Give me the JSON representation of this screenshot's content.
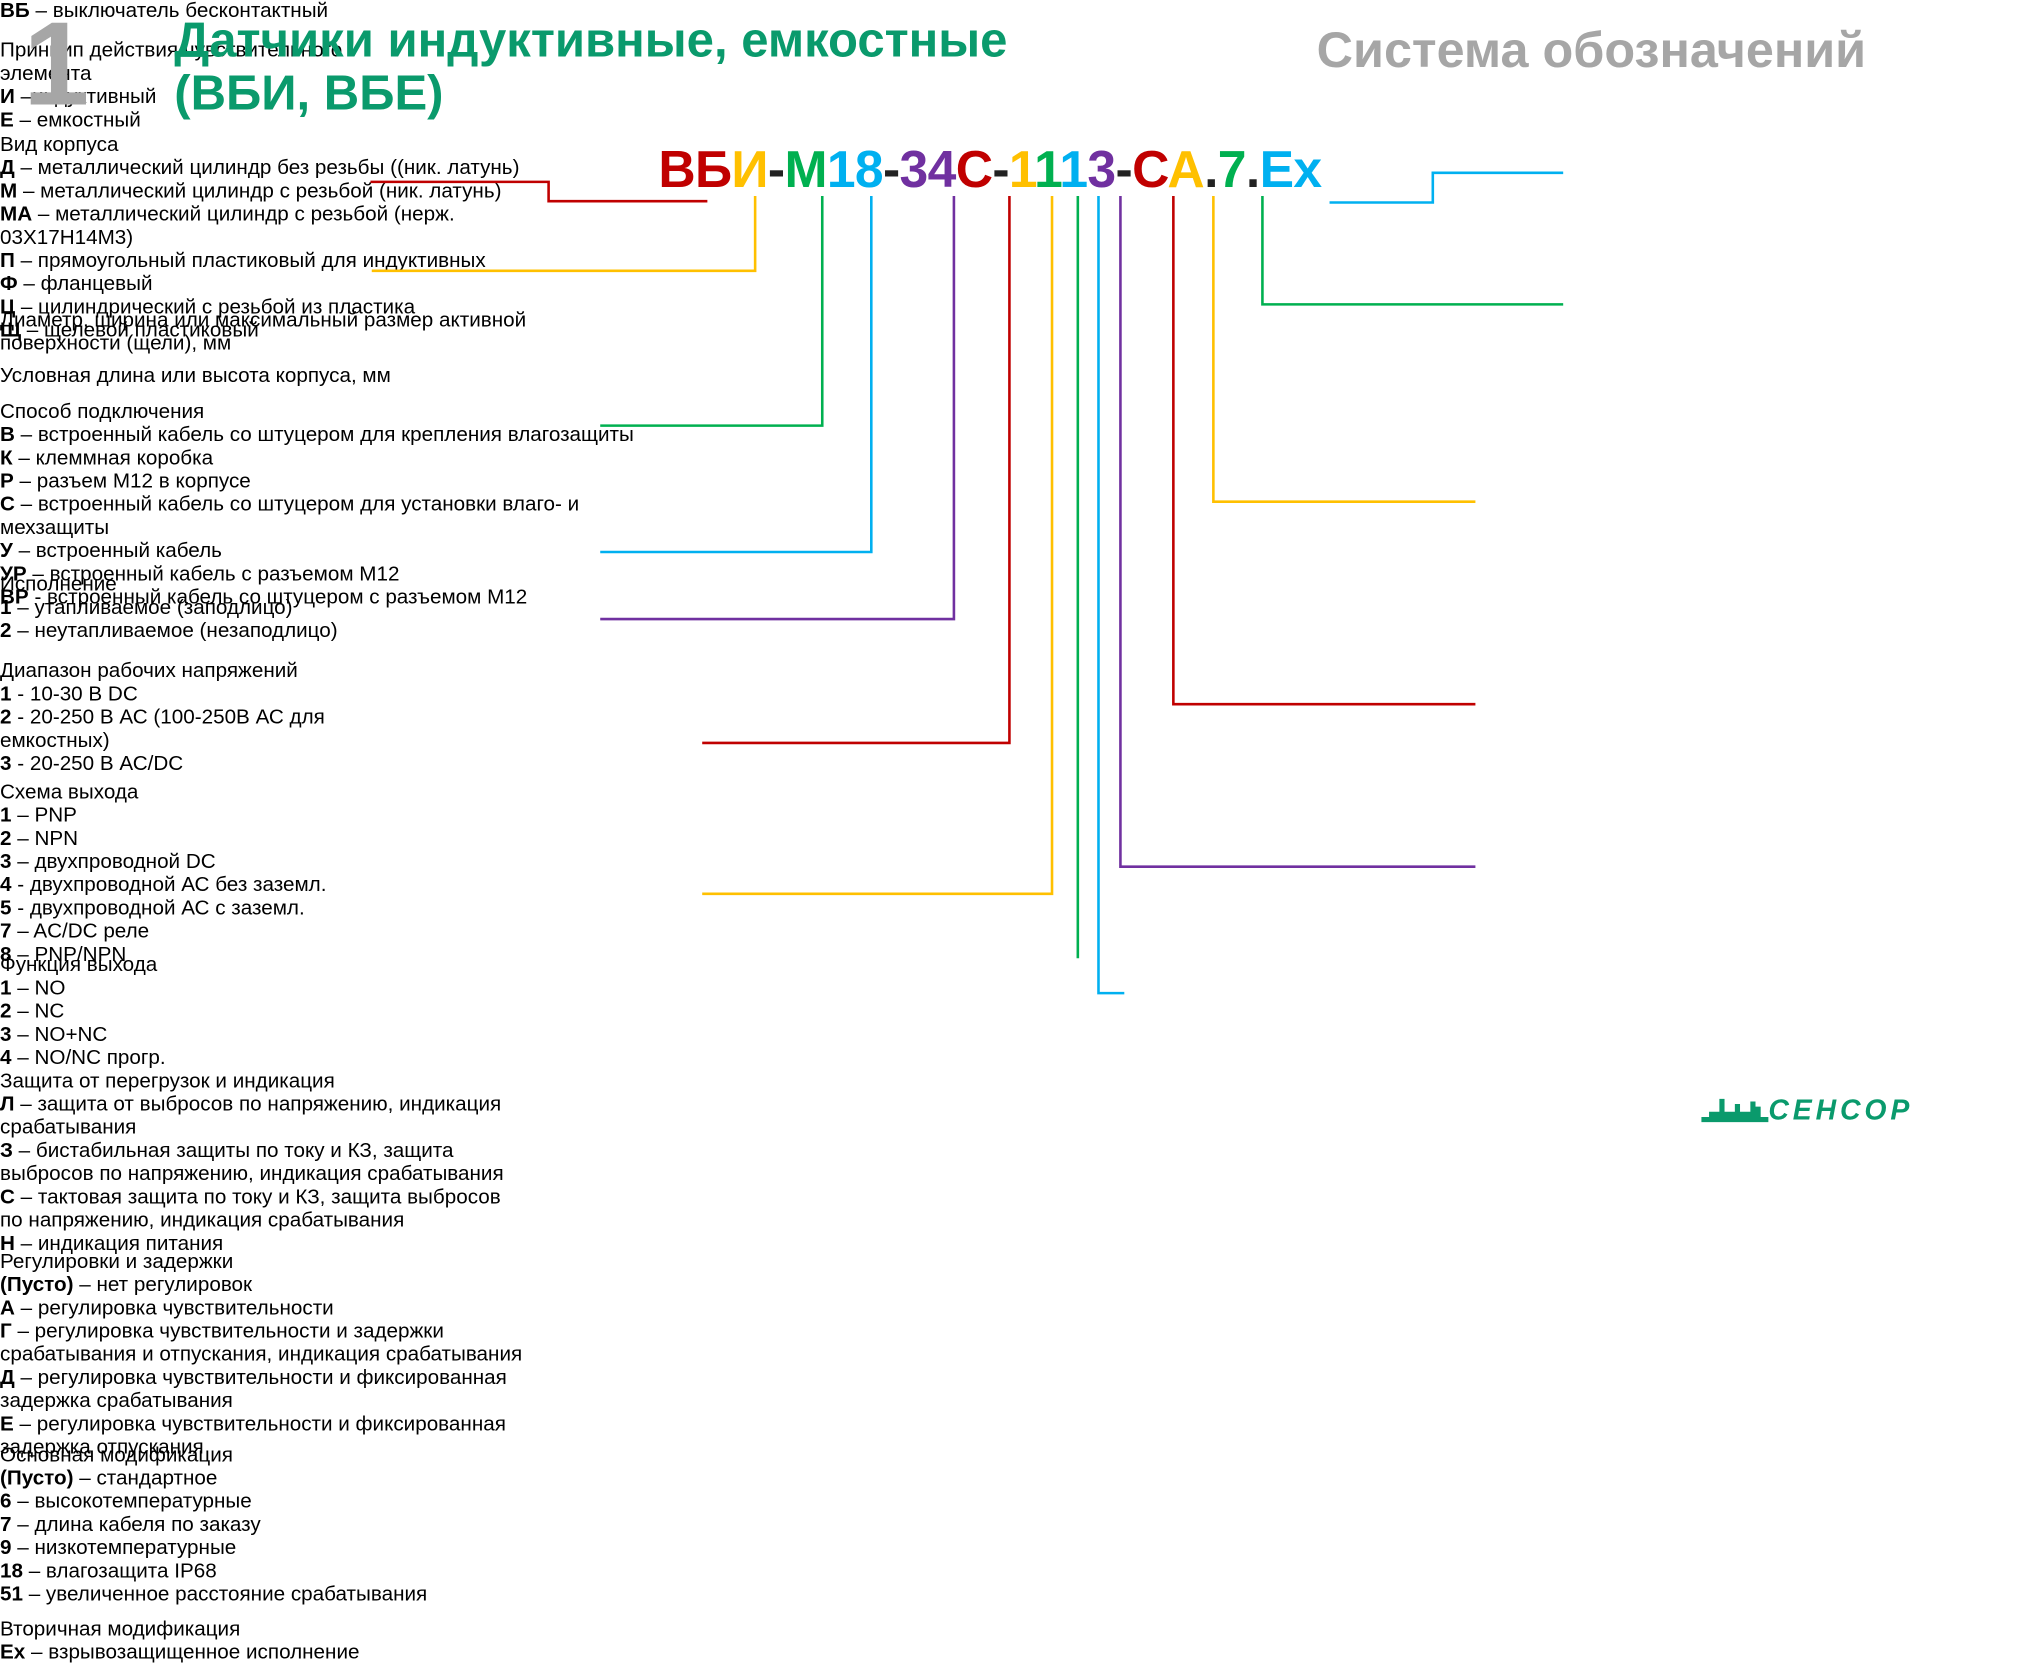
{
  "header": {
    "number": "1",
    "title": [
      "Датчики индуктивные, емкостные",
      "(ВБИ, ВБЕ)"
    ],
    "subtitle": "Система обозначений"
  },
  "code": [
    {
      "text": "ВБ",
      "color": "#c00000"
    },
    {
      "text": "И",
      "color": "#ffc000"
    },
    {
      "text": "-",
      "color": "#222222"
    },
    {
      "text": "М",
      "color": "#00b050"
    },
    {
      "text": "18",
      "color": "#00b0f0"
    },
    {
      "text": "-",
      "color": "#222222"
    },
    {
      "text": "34",
      "color": "#7030a0"
    },
    {
      "text": "С",
      "color": "#c00000"
    },
    {
      "text": "-",
      "color": "#222222"
    },
    {
      "text": "1",
      "color": "#ffc000"
    },
    {
      "text": "1",
      "color": "#00b050"
    },
    {
      "text": "1",
      "color": "#00b0f0"
    },
    {
      "text": "3",
      "color": "#7030a0"
    },
    {
      "text": "-",
      "color": "#222222"
    },
    {
      "text": "С",
      "color": "#c00000"
    },
    {
      "text": "А",
      "color": "#ffc000"
    },
    {
      "text": ".",
      "color": "#222222"
    },
    {
      "text": "7",
      "color": "#00b050"
    },
    {
      "text": ".",
      "color": "#222222"
    },
    {
      "text": "Ex",
      "color": "#00b0f0"
    }
  ],
  "boxes": [
    {
      "color": "#c00000",
      "items": [
        {
          "key": "ВБ",
          "text": " – выключатель бесконтактный"
        }
      ]
    },
    {
      "color": "#ffc000",
      "title": "Принцип действия чувствительного элемента",
      "items": [
        {
          "key": "И",
          "text": " –индуктивный"
        },
        {
          "key": "Е",
          "text": " – емкостный"
        }
      ]
    },
    {
      "color": "#00b050",
      "title": "Вид корпуса",
      "items": [
        {
          "key": "Д",
          "text": " – металлический цилиндр без резьбы ((ник. латунь)"
        },
        {
          "key": "М",
          "text": " – металлический цилиндр с резьбой (ник. латунь)"
        },
        {
          "key": "МА",
          "text": " – металлический цилиндр с резьбой (нерж. 03Х17Н14М3)"
        },
        {
          "key": "П",
          "text": " – прямоугольный пластиковый для индуктивных"
        },
        {
          "key": "Ф",
          "text": " – фланцевый"
        },
        {
          "key": "Ц",
          "text": " – цилиндрический с резьбой из пластика"
        },
        {
          "key": "Щ",
          "text": " – щелевой пластиковый"
        }
      ]
    },
    {
      "color": "#00b0f0",
      "title": "Диаметр, ширина или максимальный размер активной поверхности (щели), мм"
    },
    {
      "color": "#7030a0",
      "title": "Условная длина или высота корпуса, мм"
    },
    {
      "color": "#c00000",
      "title": "Способ подключения",
      "items": [
        {
          "key": "В",
          "text": " – встроенный кабель со штуцером для крепления влагозащиты"
        },
        {
          "key": "К",
          "text": " – клеммная коробка"
        },
        {
          "key": "Р",
          "text": " – разъем М12 в корпусе"
        },
        {
          "key": "С",
          "text": " – встроенный кабель со штуцером для установки влаго- и мехзащиты"
        },
        {
          "key": "У",
          "text": " – встроенный кабель"
        },
        {
          "key": "УР",
          "text": " – встроенный кабель с разъемом М12"
        },
        {
          "key": "ВР",
          "text": " - встроенный кабель со штуцером с разъемом М12"
        }
      ]
    },
    {
      "color": "#ffc000",
      "title": "Исполнение",
      "items": [
        {
          "key": "1",
          "text": " – утапливаемое (заподлицо)"
        },
        {
          "key": "2",
          "text": " – неутапливаемое (незаподлицо)"
        }
      ]
    },
    {
      "color": "#00b050",
      "title": "Диапазон рабочих напряжений",
      "items": [
        {
          "key": "1",
          "text": " - 10-30 В DC"
        },
        {
          "key": "2",
          "text": " - 20-250 В АС (100-250В АС для емкостных)"
        },
        {
          "key": "3",
          "text": " - 20-250 В АС/DC"
        }
      ]
    },
    {
      "color": "#00b0f0",
      "title": "Схема выхода",
      "items": [
        {
          "key": "1",
          "text": " – PNP"
        },
        {
          "key": "2",
          "text": " – NPN"
        },
        {
          "key": "3",
          "text": " – двухпроводной DC"
        },
        {
          "key": "4",
          "text": " - двухпроводной АС без заземл."
        },
        {
          "key": "5",
          "text": " - двухпроводной АС с заземл."
        },
        {
          "key": "7",
          "text": " – AC/DC реле"
        },
        {
          "key": "8",
          "text": " – PNP/NPN"
        }
      ]
    },
    {
      "color": "#7030a0",
      "title": "Функция выхода",
      "items": [
        {
          "key": "1",
          "text": " – NO"
        },
        {
          "key": "2",
          "text": " – NC"
        },
        {
          "key": "3",
          "text": " – NO+NC"
        },
        {
          "key": "4",
          "text": " – NO/NC прогр."
        }
      ]
    },
    {
      "color": "#c00000",
      "title": "Защита от перегрузок и индикация",
      "items": [
        {
          "key": "Л",
          "text": " – защита от выбросов по напряжению, индикация срабатывания"
        },
        {
          "key": "З",
          "text": " – бистабильная защиты по току и КЗ, защита выбросов по напряжению, индикация срабатывания"
        },
        {
          "key": "С",
          "text": " – тактовая защита по току и КЗ, защита выбросов по напряжению, индикация срабатывания"
        },
        {
          "key": "Н",
          "text": " – индикация питания"
        }
      ]
    },
    {
      "color": "#ffc000",
      "title": "Регулировки и задержки",
      "items": [
        {
          "key": "(Пусто)",
          "text": " – нет регулировок"
        },
        {
          "key": "А",
          "text": " – регулировка чувствительности"
        },
        {
          "key": "Г",
          "text": " – регулировка чувствительности и задержки срабатывания и отпускания, индикация срабатывания"
        },
        {
          "key": "Д",
          "text": " – регулировка чувствительности и фиксированная задержка срабатывания"
        },
        {
          "key": "Е",
          "text": " – регулировка чувствительности и фиксированная задержка отпускания"
        }
      ]
    },
    {
      "color": "#00b050",
      "title": "Основная модификация",
      "items": [
        {
          "key": "(Пусто)",
          "text": " – стандартное"
        },
        {
          "key": "6",
          "text": " – высокотемпературные"
        },
        {
          "key": "7",
          "text": " – длина кабеля по заказу"
        },
        {
          "key": "9",
          "text": " – низкотемпературные"
        },
        {
          "key": "18",
          "text": " – влагозащита IP68"
        },
        {
          "key": "51",
          "text": " – увеличенное расстояние срабатывания"
        }
      ]
    },
    {
      "color": "#00b0f0",
      "title": "Вторичная модификация",
      "items": [
        {
          "key": "Ex",
          "text": " – взрывозащищенное исполнение"
        }
      ]
    }
  ],
  "logo": "СЕНСОР"
}
